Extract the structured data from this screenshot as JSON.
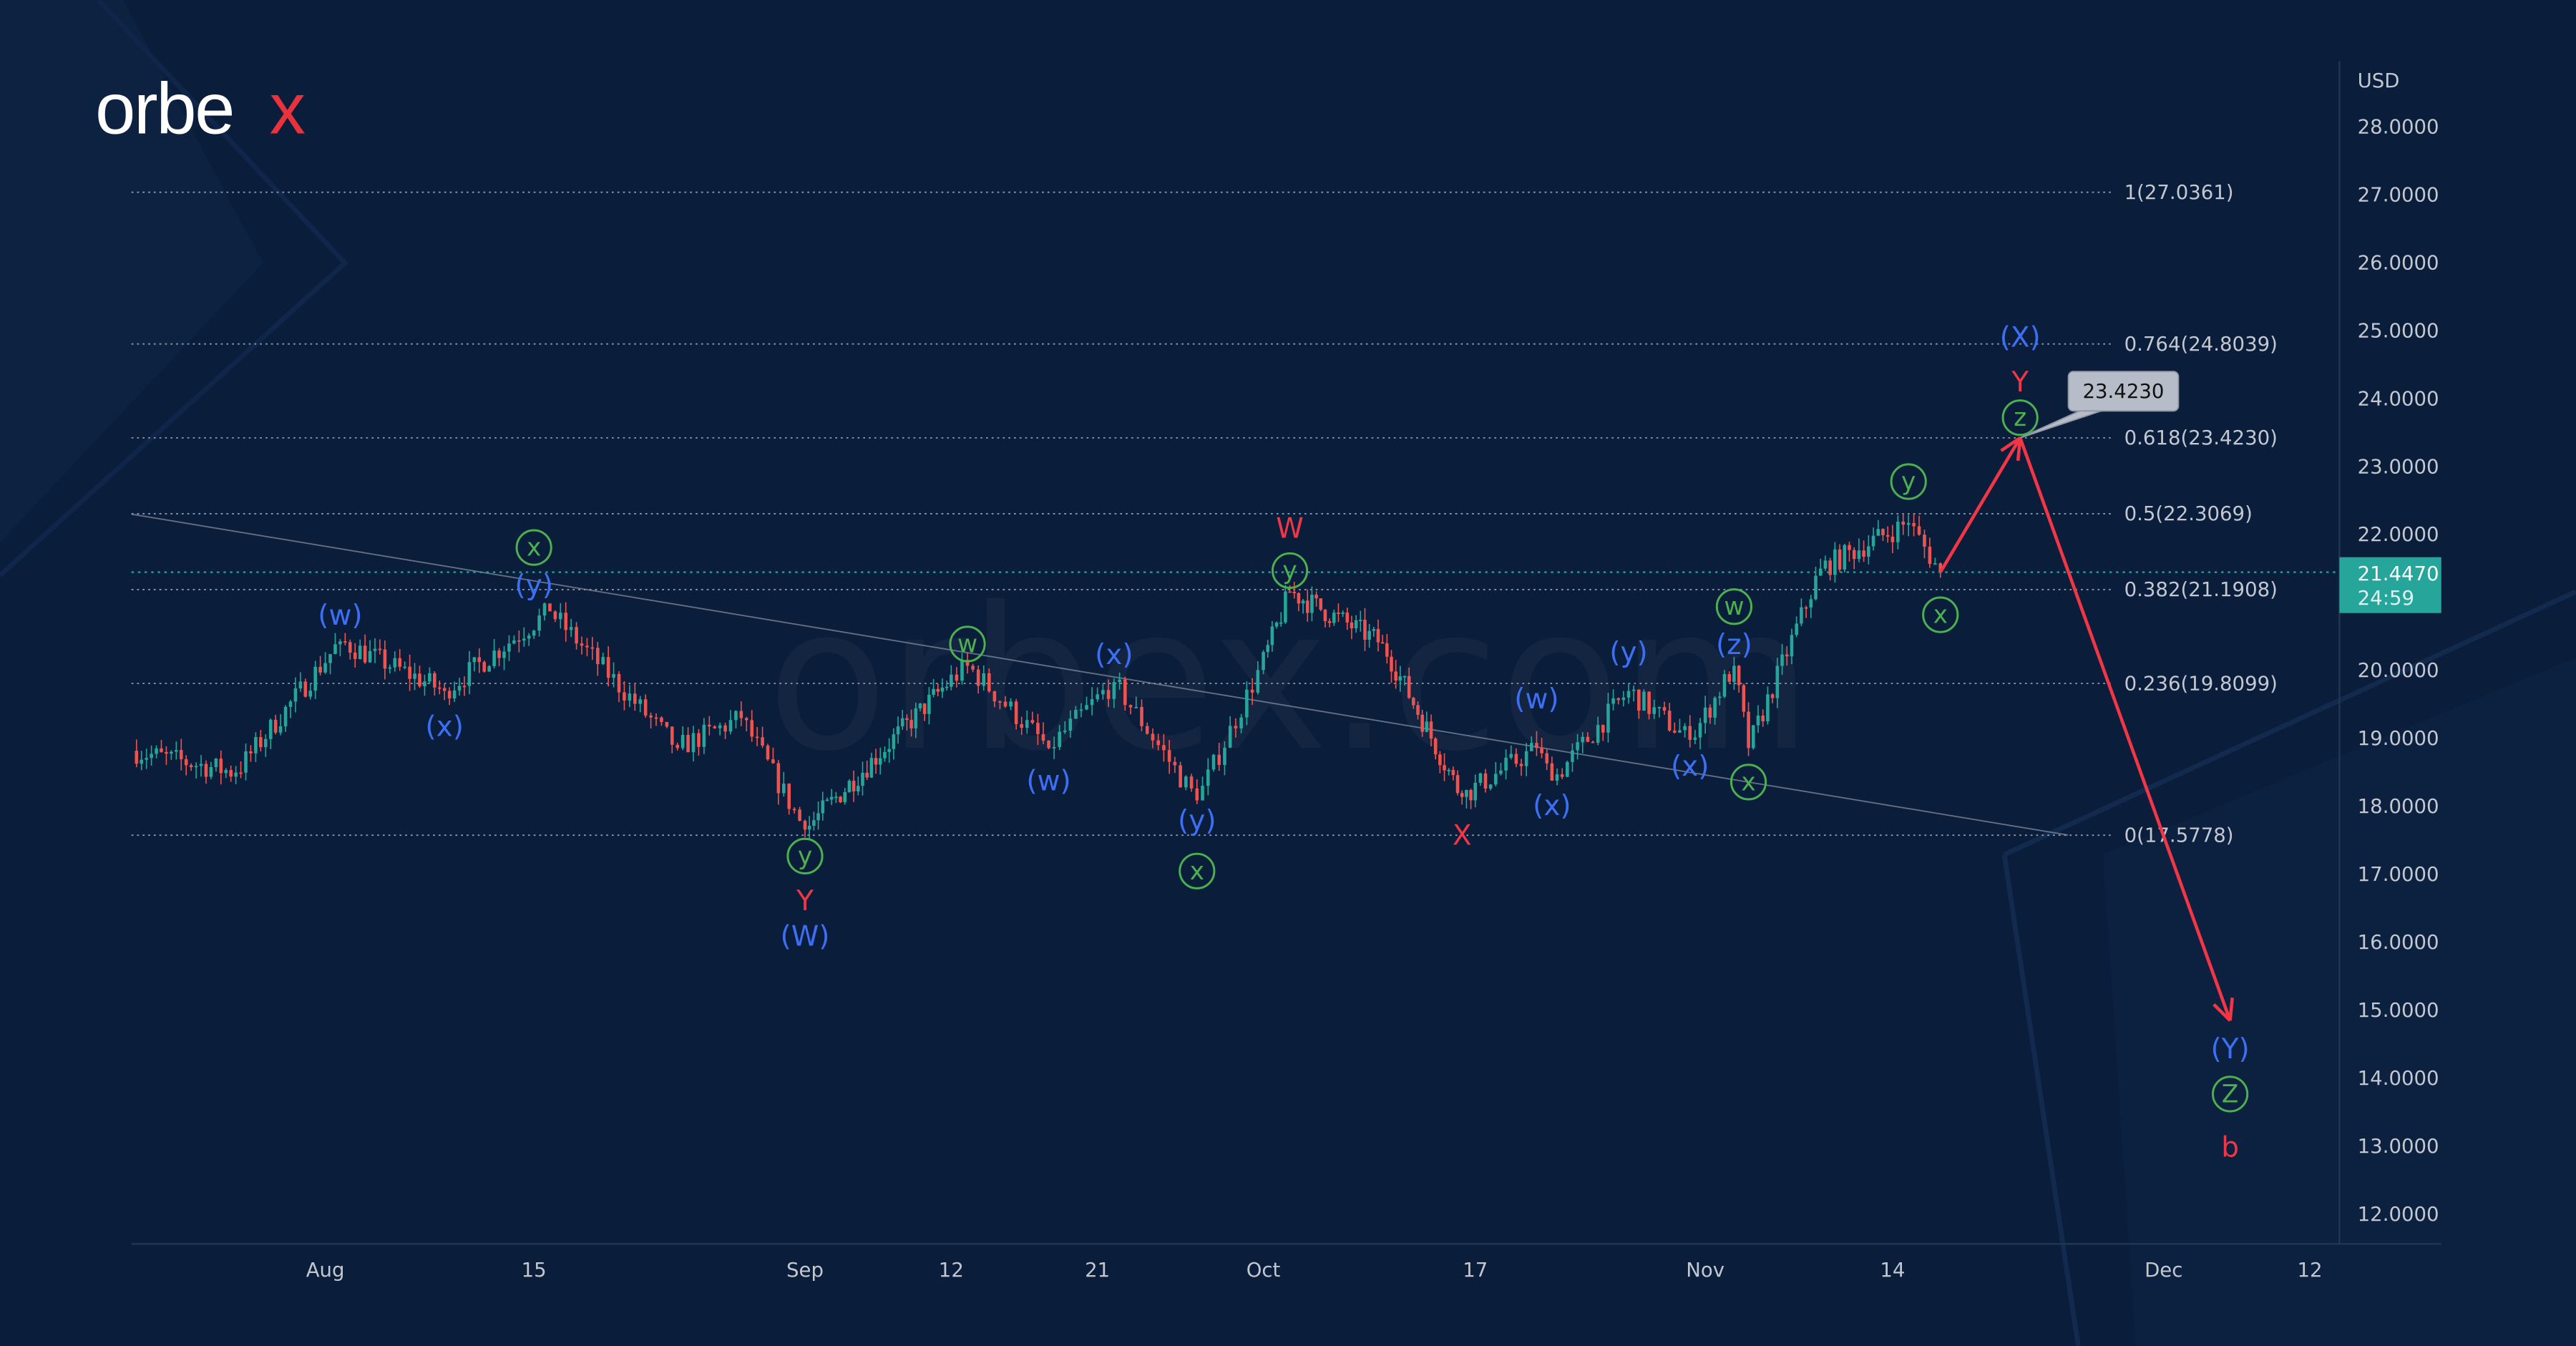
{
  "brand": {
    "logo_text": "orbex",
    "watermark": "orbex.com"
  },
  "colors": {
    "background": "#0a1d3a",
    "up": "#26a69a",
    "down": "#ef5350",
    "wave_blue": "#3d6ff5",
    "wave_red": "#f23645",
    "wave_green": "#4caf50",
    "arrow": "#f23645",
    "price_tag": "#26a69a"
  },
  "chart_data": {
    "type": "candlestick",
    "currency_label": "USD",
    "ylim": [
      11.5,
      28.9
    ],
    "y_ticks": [
      "28.0000",
      "27.0000",
      "26.0000",
      "25.0000",
      "24.0000",
      "23.0000",
      "22.0000",
      "20.0000",
      "19.0000",
      "18.0000",
      "17.0000",
      "16.0000",
      "15.0000",
      "14.0000",
      "13.0000",
      "12.0000"
    ],
    "y_tick_values": [
      28,
      27,
      26,
      25,
      24,
      23,
      22,
      20,
      19,
      18,
      17,
      16,
      15,
      14,
      13,
      12
    ],
    "x_ticks": [
      {
        "label": "Aug",
        "date": "2022-08-01"
      },
      {
        "label": "15",
        "date": "2022-08-15"
      },
      {
        "label": "Sep",
        "date": "2022-09-01"
      },
      {
        "label": "12",
        "date": "2022-09-12"
      },
      {
        "label": "21",
        "date": "2022-09-21"
      },
      {
        "label": "Oct",
        "date": "2022-10-01"
      },
      {
        "label": "17",
        "date": "2022-10-17"
      },
      {
        "label": "Nov",
        "date": "2022-11-01"
      },
      {
        "label": "14",
        "date": "2022-11-14"
      },
      {
        "label": "Dec",
        "date": "2022-12-01"
      },
      {
        "label": "12",
        "date": "2022-12-12"
      }
    ],
    "price_pivots": [
      [
        "2022-07-19",
        18.82
      ],
      [
        "2022-07-26",
        18.5
      ],
      [
        "2022-08-02",
        20.43
      ],
      [
        "2022-08-09",
        19.7
      ],
      [
        "2022-08-16",
        20.87
      ],
      [
        "2022-08-24",
        18.86
      ],
      [
        "2022-08-28",
        19.3
      ],
      [
        "2022-09-01",
        17.66
      ],
      [
        "2022-09-13",
        20.07
      ],
      [
        "2022-09-18",
        18.86
      ],
      [
        "2022-09-22",
        19.83
      ],
      [
        "2022-09-27",
        18.09
      ],
      [
        "2022-10-03",
        21.16
      ],
      [
        "2022-10-10",
        20.4
      ],
      [
        "2022-10-16",
        18.14
      ],
      [
        "2022-10-21",
        18.86
      ],
      [
        "2022-10-22",
        18.38
      ],
      [
        "2022-10-27",
        19.7
      ],
      [
        "2022-10-31",
        18.98
      ],
      [
        "2022-11-03",
        20.07
      ],
      [
        "2022-11-04",
        18.86
      ],
      [
        "2022-11-09",
        21.5
      ],
      [
        "2022-11-15",
        22.17
      ],
      [
        "2022-11-17",
        21.447
      ]
    ],
    "last_price": {
      "value": "21.4470",
      "countdown": "24:59"
    },
    "fib_levels": [
      {
        "label": "1(27.0361)",
        "value": 27.0361
      },
      {
        "label": "0.764(24.8039)",
        "value": 24.8039
      },
      {
        "label": "0.618(23.4230)",
        "value": 23.423
      },
      {
        "label": "0.5(22.3069)",
        "value": 22.3069
      },
      {
        "label": "0.382(21.1908)",
        "value": 21.1908
      },
      {
        "label": "0.236(19.8099)",
        "value": 19.8099
      },
      {
        "label": "0(17.5778)",
        "value": 17.5778
      }
    ],
    "trendline": [
      [
        "2022-07-19",
        22.3
      ],
      [
        "2022-11-25",
        17.58
      ]
    ],
    "target_callout": {
      "label": "23.4230",
      "value": 23.423
    },
    "forecast_path": [
      [
        "2022-11-17",
        21.447
      ],
      [
        "2022-11-22",
        23.423
      ],
      [
        "2022-12-06",
        14.85
      ]
    ],
    "wave_labels": [
      {
        "text": "(w)",
        "color": "blue",
        "date": "2022-08-02",
        "price": 20.82
      },
      {
        "text": "(x)",
        "color": "blue",
        "date": "2022-08-09",
        "price": 19.18
      },
      {
        "text": "x",
        "color": "green",
        "circled": true,
        "date": "2022-08-15",
        "price": 21.81
      },
      {
        "text": "(y)",
        "color": "blue",
        "date": "2022-08-15",
        "price": 21.26
      },
      {
        "text": "y",
        "color": "green",
        "circled": true,
        "date": "2022-09-01",
        "price": 17.27
      },
      {
        "text": "Y",
        "color": "red",
        "date": "2022-09-01",
        "price": 16.62
      },
      {
        "text": "(W)",
        "color": "blue",
        "date": "2022-09-01",
        "price": 16.1
      },
      {
        "text": "w",
        "color": "green",
        "circled": true,
        "date": "2022-09-13",
        "price": 20.39
      },
      {
        "text": "(w)",
        "color": "blue",
        "date": "2022-09-18",
        "price": 18.38
      },
      {
        "text": "(x)",
        "color": "blue",
        "date": "2022-09-22",
        "price": 20.24
      },
      {
        "text": "(y)",
        "color": "blue",
        "date": "2022-09-27",
        "price": 17.8
      },
      {
        "text": "x",
        "color": "green",
        "circled": true,
        "date": "2022-09-27",
        "price": 17.05
      },
      {
        "text": "W",
        "color": "red",
        "date": "2022-10-03",
        "price": 22.1
      },
      {
        "text": "y",
        "color": "green",
        "circled": true,
        "date": "2022-10-03",
        "price": 21.47
      },
      {
        "text": "X",
        "color": "red",
        "date": "2022-10-16",
        "price": 17.58
      },
      {
        "text": "(w)",
        "color": "blue",
        "date": "2022-10-21",
        "price": 19.59
      },
      {
        "text": "(x)",
        "color": "blue",
        "date": "2022-10-22",
        "price": 18.02
      },
      {
        "text": "(y)",
        "color": "blue",
        "date": "2022-10-27",
        "price": 20.27
      },
      {
        "text": "(x)",
        "color": "blue",
        "date": "2022-10-31",
        "price": 18.6
      },
      {
        "text": "w",
        "color": "green",
        "circled": true,
        "date": "2022-11-03",
        "price": 20.94
      },
      {
        "text": "(z)",
        "color": "blue",
        "date": "2022-11-03",
        "price": 20.39
      },
      {
        "text": "x",
        "color": "green",
        "circled": true,
        "date": "2022-11-04",
        "price": 18.36
      },
      {
        "text": "y",
        "color": "green",
        "circled": true,
        "date": "2022-11-15",
        "price": 22.78
      },
      {
        "text": "x",
        "color": "green",
        "circled": true,
        "date": "2022-11-17",
        "price": 20.82
      },
      {
        "text": "(X)",
        "color": "blue",
        "date": "2022-11-22",
        "price": 24.91
      },
      {
        "text": "Y",
        "color": "red",
        "date": "2022-11-22",
        "price": 24.25
      },
      {
        "text": "z",
        "color": "green",
        "circled": true,
        "date": "2022-11-22",
        "price": 23.72
      },
      {
        "text": "(Y)",
        "color": "blue",
        "date": "2022-12-06",
        "price": 14.44
      },
      {
        "text": "Z",
        "color": "green",
        "circled": true,
        "date": "2022-12-06",
        "price": 13.77
      },
      {
        "text": "b",
        "color": "red",
        "date": "2022-12-06",
        "price": 12.99
      }
    ]
  }
}
